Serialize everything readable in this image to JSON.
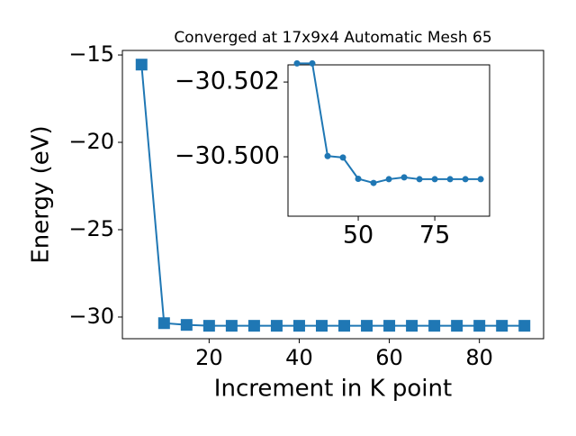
{
  "chart_data": [
    {
      "type": "line",
      "title": "Converged at 17x9x4 Automatic Mesh 65",
      "x_label": "Increment in K point",
      "y_label": "Energy (eV)",
      "marker": "square",
      "x": [
        5,
        10,
        15,
        20,
        25,
        30,
        35,
        40,
        45,
        50,
        55,
        60,
        65,
        70,
        75,
        80,
        85,
        90
      ],
      "series": [
        {
          "color": "#1f77b4",
          "values": [
            -15.55,
            -30.35,
            -30.45,
            -30.5,
            -30.5,
            -30.5,
            -30.5,
            -30.5,
            -30.5,
            -30.5,
            -30.5,
            -30.5,
            -30.5,
            -30.5,
            -30.5,
            -30.5,
            -30.5,
            -30.5
          ]
        }
      ],
      "xlim": [
        0.75,
        94.25
      ],
      "ylim": [
        -31.24,
        -14.74
      ],
      "xticks": [
        20,
        40,
        60,
        80
      ],
      "yticks": [
        {
          "value": -30,
          "label": "−30"
        },
        {
          "value": -25,
          "label": "−25"
        },
        {
          "value": -20,
          "label": "−20"
        },
        {
          "value": -15,
          "label": "−15"
        }
      ]
    },
    {
      "type": "line",
      "marker": "circle",
      "x": [
        30,
        35,
        40,
        45,
        50,
        55,
        60,
        65,
        70,
        75,
        80,
        85,
        90
      ],
      "series": [
        {
          "color": "#1f77b4",
          "values": [
            -30.5025,
            -30.5025,
            -30.50002,
            -30.49998,
            -30.49941,
            -30.4993,
            -30.4994,
            -30.49945,
            -30.4994,
            -30.4994,
            -30.4994,
            -30.4994,
            -30.4994
          ]
        }
      ],
      "xlim": [
        27.06,
        92.9
      ],
      "ylim": [
        -30.49841,
        -30.50246
      ],
      "xticks": [
        50,
        75
      ],
      "yticks": [
        {
          "value": -30.5,
          "label": "−30.500"
        },
        {
          "value": -30.502,
          "label": "−30.502"
        }
      ]
    }
  ]
}
